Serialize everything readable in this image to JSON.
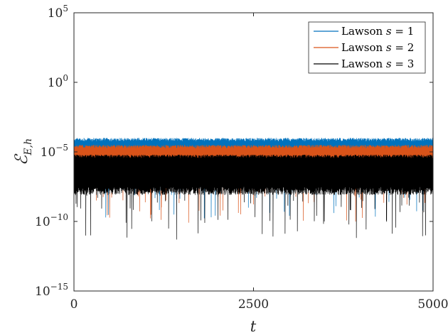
{
  "chart_data": {
    "type": "line",
    "title": "",
    "xlabel": "t",
    "ylabel_main": "ℰ",
    "ylabel_sub": "E,h",
    "xlim": [
      0,
      5000
    ],
    "ylim_log10": [
      -15,
      5
    ],
    "yscale": "log",
    "grid": false,
    "legend_position": "top-right",
    "x_ticks": [
      {
        "value": 0,
        "label": "0"
      },
      {
        "value": 2500,
        "label": "2500"
      },
      {
        "value": 5000,
        "label": "5000"
      }
    ],
    "y_ticks": [
      {
        "exp": 5,
        "base": "10",
        "sup": "5"
      },
      {
        "exp": 0,
        "base": "10",
        "sup": "0"
      },
      {
        "exp": -5,
        "base": "10",
        "sup": "−5"
      },
      {
        "exp": -10,
        "base": "10",
        "sup": "−10"
      },
      {
        "exp": -15,
        "base": "10",
        "sup": "−15"
      }
    ],
    "series": [
      {
        "name": "Lawson s = 1",
        "label_text": "Lawson ",
        "label_var": "s",
        "label_eq": " = 1",
        "color": "#0072BD",
        "band_log10": [
          -6.4,
          -4.0
        ],
        "spike_min_log10": -9.8
      },
      {
        "name": "Lawson s = 2",
        "label_text": "Lawson ",
        "label_var": "s",
        "label_eq": " = 2",
        "color": "#D95319",
        "band_log10": [
          -6.3,
          -4.5
        ],
        "spike_min_log10": -10.1
      },
      {
        "name": "Lawson s = 3",
        "label_text": "Lawson ",
        "label_var": "s",
        "label_eq": " = 3",
        "color": "#000000",
        "band_log10": [
          -8.1,
          -5.2
        ],
        "spike_min_log10": -11.4
      }
    ]
  }
}
